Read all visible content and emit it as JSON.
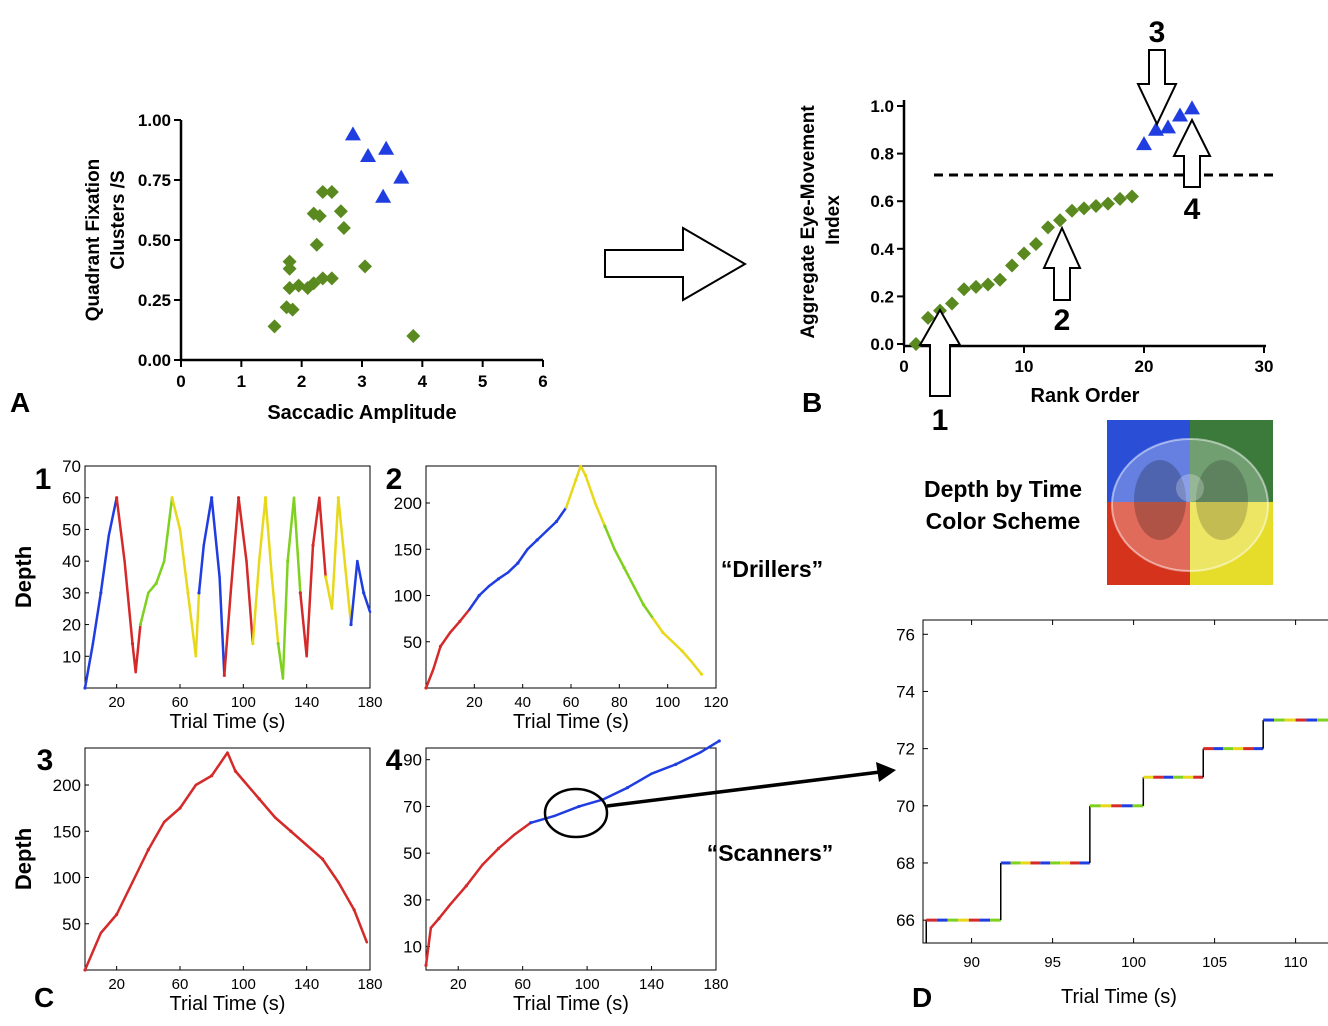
{
  "panel_labels": {
    "A": "A",
    "B": "B",
    "C": "C",
    "D": "D"
  },
  "colors": {
    "green": "#5a8a1f",
    "blue": "#1f3de0",
    "red": "#d42a2a",
    "yellow": "#e8d81a",
    "lime": "#7fd11f",
    "black": "#000000"
  },
  "annotations": {
    "drillers": "“Drillers”",
    "scanners": "“Scanners”",
    "scheme_line1": "Depth by Time",
    "scheme_line2": "Color Scheme",
    "quadrant_colors": [
      "#2a4fd6",
      "#3c7a3c",
      "#d6331c",
      "#e6dd2a"
    ]
  },
  "chart_data": [
    {
      "id": "A",
      "type": "scatter",
      "xlabel": "Saccadic Amplitude",
      "ylabel_line1": "Quadrant Fixation",
      "ylabel_line2": "Clusters /S",
      "xlim": [
        0,
        6
      ],
      "ylim": [
        0,
        1
      ],
      "xticks": [
        "0",
        "1",
        "2",
        "3",
        "4",
        "5",
        "6"
      ],
      "yticks": [
        "0.00",
        "0.25",
        "0.50",
        "0.75",
        "1.00"
      ],
      "series": [
        {
          "marker": "diamond",
          "color": "#5a8a1f",
          "points": [
            [
              1.55,
              0.14
            ],
            [
              1.75,
              0.22
            ],
            [
              1.85,
              0.21
            ],
            [
              1.8,
              0.3
            ],
            [
              1.95,
              0.31
            ],
            [
              2.1,
              0.3
            ],
            [
              2.2,
              0.32
            ],
            [
              2.35,
              0.34
            ],
            [
              2.5,
              0.34
            ],
            [
              1.8,
              0.38
            ],
            [
              1.8,
              0.41
            ],
            [
              2.25,
              0.48
            ],
            [
              2.3,
              0.6
            ],
            [
              2.2,
              0.61
            ],
            [
              2.35,
              0.7
            ],
            [
              2.5,
              0.7
            ],
            [
              2.65,
              0.62
            ],
            [
              2.7,
              0.55
            ],
            [
              3.05,
              0.39
            ],
            [
              3.85,
              0.1
            ]
          ]
        },
        {
          "marker": "triangle",
          "color": "#1f3de0",
          "points": [
            [
              2.85,
              0.94
            ],
            [
              3.1,
              0.85
            ],
            [
              3.4,
              0.88
            ],
            [
              3.35,
              0.68
            ],
            [
              3.65,
              0.76
            ]
          ]
        }
      ]
    },
    {
      "id": "B",
      "type": "scatter",
      "xlabel": "Rank Order",
      "ylabel_line1": "Aggregate Eye-Movement",
      "ylabel_line2": "Index",
      "xlim": [
        0,
        30
      ],
      "ylim": [
        0,
        1
      ],
      "xticks": [
        "0",
        "10",
        "20",
        "30"
      ],
      "yticks": [
        "0.0",
        "0.2",
        "0.4",
        "0.6",
        "0.8",
        "1.0"
      ],
      "threshold": 0.71,
      "arrow_labels": [
        "1",
        "2",
        "3",
        "4"
      ],
      "series": [
        {
          "marker": "diamond",
          "color": "#5a8a1f",
          "points": [
            [
              1,
              0.0
            ],
            [
              2,
              0.11
            ],
            [
              3,
              0.14
            ],
            [
              4,
              0.17
            ],
            [
              5,
              0.23
            ],
            [
              6,
              0.24
            ],
            [
              7,
              0.25
            ],
            [
              8,
              0.27
            ],
            [
              9,
              0.33
            ],
            [
              10,
              0.38
            ],
            [
              11,
              0.42
            ],
            [
              12,
              0.49
            ],
            [
              13,
              0.52
            ],
            [
              14,
              0.56
            ],
            [
              15,
              0.57
            ],
            [
              16,
              0.58
            ],
            [
              17,
              0.59
            ],
            [
              18,
              0.61
            ],
            [
              19,
              0.62
            ]
          ]
        },
        {
          "marker": "triangle",
          "color": "#1f3de0",
          "points": [
            [
              20,
              0.84
            ],
            [
              21,
              0.9
            ],
            [
              22,
              0.91
            ],
            [
              23,
              0.96
            ],
            [
              24,
              0.99
            ]
          ]
        }
      ]
    },
    {
      "id": "C1",
      "type": "line",
      "index_label": "1",
      "xlabel": "Trial Time (s)",
      "ylabel": "Depth",
      "xlim": [
        0,
        180
      ],
      "ylim": [
        0,
        70
      ],
      "xticks": [
        "20",
        "60",
        "100",
        "140",
        "180"
      ],
      "yticks": [
        "10",
        "20",
        "30",
        "40",
        "50",
        "60",
        "70"
      ],
      "points": [
        [
          0,
          0
        ],
        [
          5,
          14
        ],
        [
          10,
          30
        ],
        [
          15,
          48
        ],
        [
          20,
          60
        ],
        [
          25,
          40
        ],
        [
          30,
          14
        ],
        [
          32,
          5
        ],
        [
          35,
          20
        ],
        [
          40,
          30
        ],
        [
          45,
          33
        ],
        [
          50,
          40
        ],
        [
          55,
          60
        ],
        [
          60,
          50
        ],
        [
          65,
          30
        ],
        [
          70,
          10
        ],
        [
          72,
          30
        ],
        [
          75,
          45
        ],
        [
          80,
          60
        ],
        [
          85,
          35
        ],
        [
          88,
          4
        ],
        [
          92,
          30
        ],
        [
          97,
          60
        ],
        [
          102,
          40
        ],
        [
          106,
          14
        ],
        [
          110,
          40
        ],
        [
          114,
          60
        ],
        [
          118,
          35
        ],
        [
          122,
          14
        ],
        [
          125,
          3
        ],
        [
          128,
          40
        ],
        [
          132,
          60
        ],
        [
          136,
          30
        ],
        [
          140,
          10
        ],
        [
          144,
          45
        ],
        [
          148,
          60
        ],
        [
          152,
          35
        ],
        [
          156,
          25
        ],
        [
          160,
          60
        ],
        [
          164,
          40
        ],
        [
          168,
          20
        ],
        [
          172,
          40
        ],
        [
          176,
          30
        ],
        [
          180,
          24
        ]
      ],
      "colors": [
        "#1f3de0",
        "#d42a2a",
        "#7fd11f",
        "#e8d81a",
        "#1f3de0",
        "#d42a2a",
        "#e8d81a",
        "#7fd11f",
        "#d42a2a",
        "#e8d81a",
        "#1f3de0",
        "#d42a2a"
      ]
    },
    {
      "id": "C2",
      "type": "line",
      "index_label": "2",
      "xlabel": "Trial Time (s)",
      "ylabel": "",
      "xlim": [
        0,
        120
      ],
      "ylim": [
        0,
        240
      ],
      "xticks": [
        "20",
        "40",
        "60",
        "80",
        "100",
        "120"
      ],
      "yticks": [
        "50",
        "100",
        "150",
        "200"
      ],
      "points": [
        [
          0,
          0
        ],
        [
          3,
          20
        ],
        [
          6,
          45
        ],
        [
          10,
          60
        ],
        [
          14,
          72
        ],
        [
          18,
          85
        ],
        [
          22,
          100
        ],
        [
          26,
          110
        ],
        [
          30,
          118
        ],
        [
          34,
          125
        ],
        [
          38,
          135
        ],
        [
          42,
          150
        ],
        [
          46,
          160
        ],
        [
          50,
          170
        ],
        [
          54,
          180
        ],
        [
          58,
          195
        ],
        [
          62,
          225
        ],
        [
          64,
          240
        ],
        [
          66,
          230
        ],
        [
          70,
          200
        ],
        [
          74,
          175
        ],
        [
          78,
          150
        ],
        [
          82,
          130
        ],
        [
          86,
          110
        ],
        [
          90,
          90
        ],
        [
          94,
          75
        ],
        [
          98,
          60
        ],
        [
          102,
          50
        ],
        [
          106,
          40
        ],
        [
          110,
          28
        ],
        [
          114,
          15
        ]
      ],
      "colors": [
        "#d42a2a",
        "#1f3de0",
        "#1f3de0",
        "#e8d81a",
        "#7fd11f",
        "#e8d81a"
      ]
    },
    {
      "id": "C3",
      "type": "line",
      "index_label": "3",
      "xlabel": "Trial Time (s)",
      "ylabel": "Depth",
      "xlim": [
        0,
        180
      ],
      "ylim": [
        0,
        240
      ],
      "xticks": [
        "20",
        "60",
        "100",
        "140",
        "180"
      ],
      "yticks": [
        "50",
        "100",
        "150",
        "200"
      ],
      "points": [
        [
          0,
          0
        ],
        [
          10,
          40
        ],
        [
          20,
          60
        ],
        [
          30,
          95
        ],
        [
          40,
          130
        ],
        [
          50,
          160
        ],
        [
          60,
          175
        ],
        [
          70,
          200
        ],
        [
          80,
          210
        ],
        [
          90,
          235
        ],
        [
          95,
          215
        ],
        [
          100,
          205
        ],
        [
          110,
          185
        ],
        [
          120,
          165
        ],
        [
          130,
          150
        ],
        [
          140,
          135
        ],
        [
          150,
          120
        ],
        [
          160,
          95
        ],
        [
          170,
          65
        ],
        [
          178,
          30
        ]
      ],
      "colors": [
        "#d42a2a"
      ]
    },
    {
      "id": "C4",
      "type": "line",
      "index_label": "4",
      "xlabel": "Trial Time (s)",
      "ylabel": "",
      "xlim": [
        0,
        180
      ],
      "ylim": [
        0,
        95
      ],
      "xticks": [
        "20",
        "60",
        "100",
        "140",
        "180"
      ],
      "yticks": [
        "10",
        "30",
        "50",
        "70",
        "90"
      ],
      "points": [
        [
          0,
          2
        ],
        [
          3,
          18
        ],
        [
          8,
          22
        ],
        [
          15,
          28
        ],
        [
          25,
          36
        ],
        [
          35,
          45
        ],
        [
          45,
          52
        ],
        [
          55,
          58
        ],
        [
          65,
          63
        ],
        [
          80,
          66
        ],
        [
          95,
          70
        ],
        [
          110,
          73
        ],
        [
          125,
          78
        ],
        [
          140,
          84
        ],
        [
          155,
          88
        ],
        [
          170,
          93
        ],
        [
          182,
          98
        ]
      ],
      "colors": [
        "#d42a2a",
        "#1f3de0"
      ]
    },
    {
      "id": "D",
      "type": "line",
      "xlabel": "Trial Time (s)",
      "ylabel": "",
      "xlim": [
        87,
        112
      ],
      "ylim": [
        65.2,
        76.5
      ],
      "xticks": [
        "90",
        "95",
        "100",
        "105",
        "110"
      ],
      "yticks": [
        "66",
        "68",
        "70",
        "72",
        "74",
        "76"
      ],
      "steps": [
        [
          87.2,
          66
        ],
        [
          91.8,
          68
        ],
        [
          97.3,
          70
        ],
        [
          100.6,
          71
        ],
        [
          104.3,
          72
        ],
        [
          108.0,
          73
        ],
        [
          112,
          73
        ]
      ]
    }
  ]
}
